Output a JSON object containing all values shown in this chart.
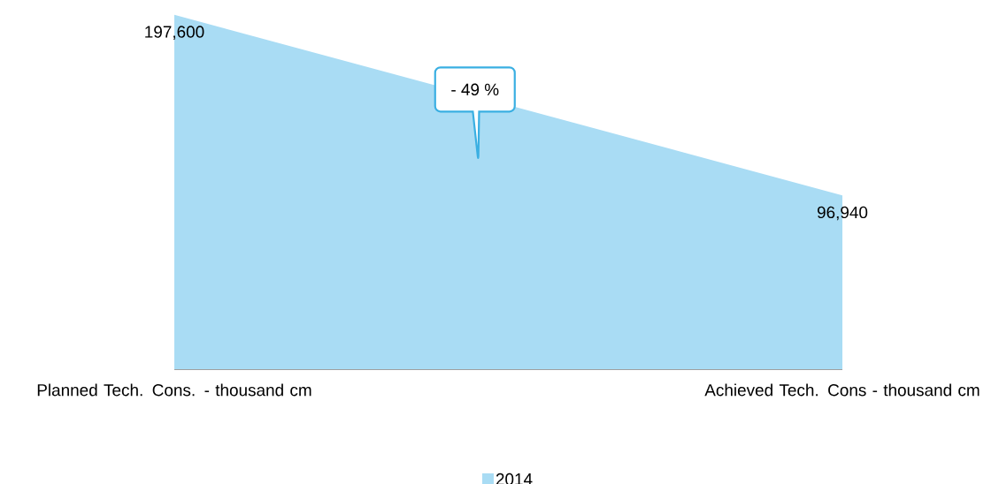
{
  "chart_data": {
    "type": "area",
    "categories": [
      "Planned Tech. Cons. - thousand cm",
      "Achieved Tech. Cons - thousand cm"
    ],
    "series": [
      {
        "name": "2014",
        "color": "#a9dcf4",
        "values": [
          197600,
          96940
        ],
        "value_labels": [
          "197,600",
          "96,940"
        ]
      }
    ],
    "tick_labels": "x",
    "legend": "bottom",
    "annotations": [
      "- 49 %"
    ]
  }
}
